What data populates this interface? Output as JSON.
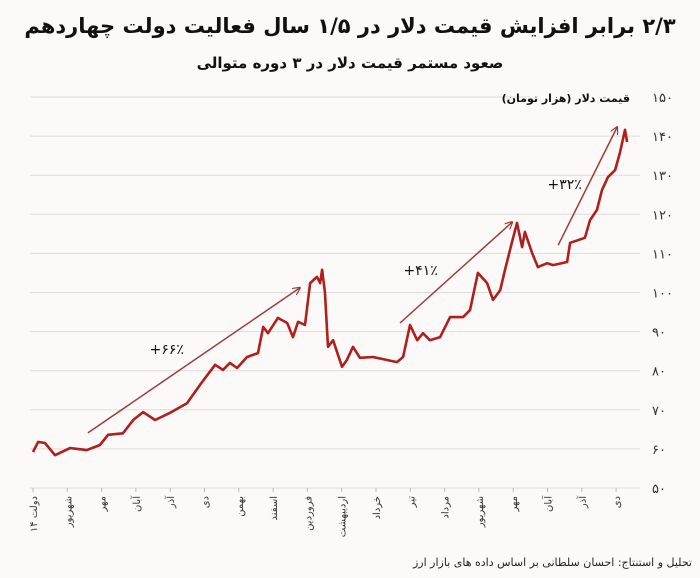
{
  "header": {
    "title": "۲/۳ برابر افزایش قیمت دلار در ۱/۵ سال فعالیت دولت چهاردهم",
    "subtitle": "صعود مستمر قیمت دلار در ۳ دوره متوالی"
  },
  "footer": {
    "source": "تحلیل و استنتاج: احسان سلطانی بر اساس داده های بازار ارز"
  },
  "chart_data": {
    "type": "line",
    "title": "۲/۳ برابر افزایش قیمت دلار در ۱/۵ سال فعالیت دولت چهاردهم",
    "ylabel": "قیمت دلار (هزار تومان)",
    "xlabel": "",
    "ylim": [
      50,
      150
    ],
    "xlim": [
      0,
      17.5
    ],
    "grid": true,
    "y_ticks": [
      {
        "value": 50,
        "label": "۵۰"
      },
      {
        "value": 60,
        "label": "۶۰"
      },
      {
        "value": 70,
        "label": "۷۰"
      },
      {
        "value": 80,
        "label": "۸۰"
      },
      {
        "value": 90,
        "label": "۹۰"
      },
      {
        "value": 100,
        "label": "۱۰۰"
      },
      {
        "value": 110,
        "label": "۱۱۰"
      },
      {
        "value": 120,
        "label": "۱۲۰"
      },
      {
        "value": 130,
        "label": "۱۳۰"
      },
      {
        "value": 140,
        "label": "۱۴۰"
      },
      {
        "value": 150,
        "label": "۱۵۰"
      }
    ],
    "categories": [
      "دولت ۱۴",
      "شهریور",
      "مهر",
      "آبان",
      "آذر",
      "دی",
      "بهمن",
      "اسفند",
      "فروردین",
      "اردیبهشت",
      "خرداد",
      "تیر",
      "مرداد",
      "شهریور",
      "مهر",
      "آبان",
      "آذر",
      "دی"
    ],
    "series": [
      {
        "name": "قیمت دلار",
        "color": "#b01e1e",
        "x": [
          0,
          0.15,
          0.35,
          0.64,
          1.08,
          1.57,
          1.95,
          2.19,
          2.62,
          2.92,
          3.21,
          3.56,
          3.99,
          4.49,
          4.93,
          5.31,
          5.54,
          5.74,
          5.95,
          6.24,
          6.56,
          6.71,
          6.85,
          7.14,
          7.41,
          7.58,
          7.73,
          7.93,
          8.08,
          8.28,
          8.37,
          8.43,
          8.51,
          8.6,
          8.75,
          9.01,
          9.15,
          9.33,
          9.53,
          9.91,
          10.61,
          10.79,
          10.99,
          11.2,
          11.37,
          11.57,
          11.87,
          12.16,
          12.54,
          12.74,
          12.97,
          13.24,
          13.41,
          13.62,
          13.76,
          13.96,
          14.11,
          14.26,
          14.34,
          14.55,
          14.72,
          14.99,
          15.16,
          15.57,
          15.66,
          16.09,
          16.24,
          16.44,
          16.59,
          16.76,
          16.97,
          17.11,
          17.26,
          17.32
        ],
        "values": [
          59.2,
          61.8,
          61.5,
          58.4,
          60.2,
          59.7,
          61,
          63.6,
          64,
          67.4,
          69.4,
          67.4,
          69.2,
          71.7,
          77.1,
          81.5,
          80.2,
          82,
          80.7,
          83.5,
          84.5,
          91.2,
          89.6,
          93.5,
          92.2,
          88.6,
          92.5,
          91.7,
          102.4,
          104,
          102.4,
          105.8,
          100.1,
          86.1,
          87.8,
          81,
          82.7,
          86.1,
          83.3,
          83.5,
          82.2,
          83.5,
          91.7,
          87.8,
          89.6,
          87.8,
          88.6,
          93.7,
          93.7,
          95.5,
          105,
          102.4,
          98.1,
          100.6,
          105.8,
          112.7,
          117.8,
          111.6,
          115.5,
          110.1,
          106.5,
          107.5,
          107,
          107.8,
          112.7,
          114,
          118.5,
          121.1,
          126.2,
          129.5,
          131.3,
          135.7,
          141.6,
          138.5
        ]
      }
    ],
    "annotations": [
      {
        "text": "+۶۶٪",
        "arrow_from": [
          1.6,
          64.1
        ],
        "arrow_to": [
          7.78,
          101.2
        ],
        "label_at": [
          3.9,
          84.3
        ]
      },
      {
        "text": "+۴۱٪",
        "arrow_from": [
          10.7,
          92.2
        ],
        "arrow_to": [
          13.97,
          118
        ],
        "label_at": [
          11.3,
          104.5
        ]
      },
      {
        "text": "+۳۲٪",
        "arrow_from": [
          15.31,
          112.1
        ],
        "arrow_to": [
          17.03,
          142.3
        ],
        "label_at": [
          15.5,
          126.5
        ]
      }
    ],
    "arrow_color": "#a03a3a"
  }
}
